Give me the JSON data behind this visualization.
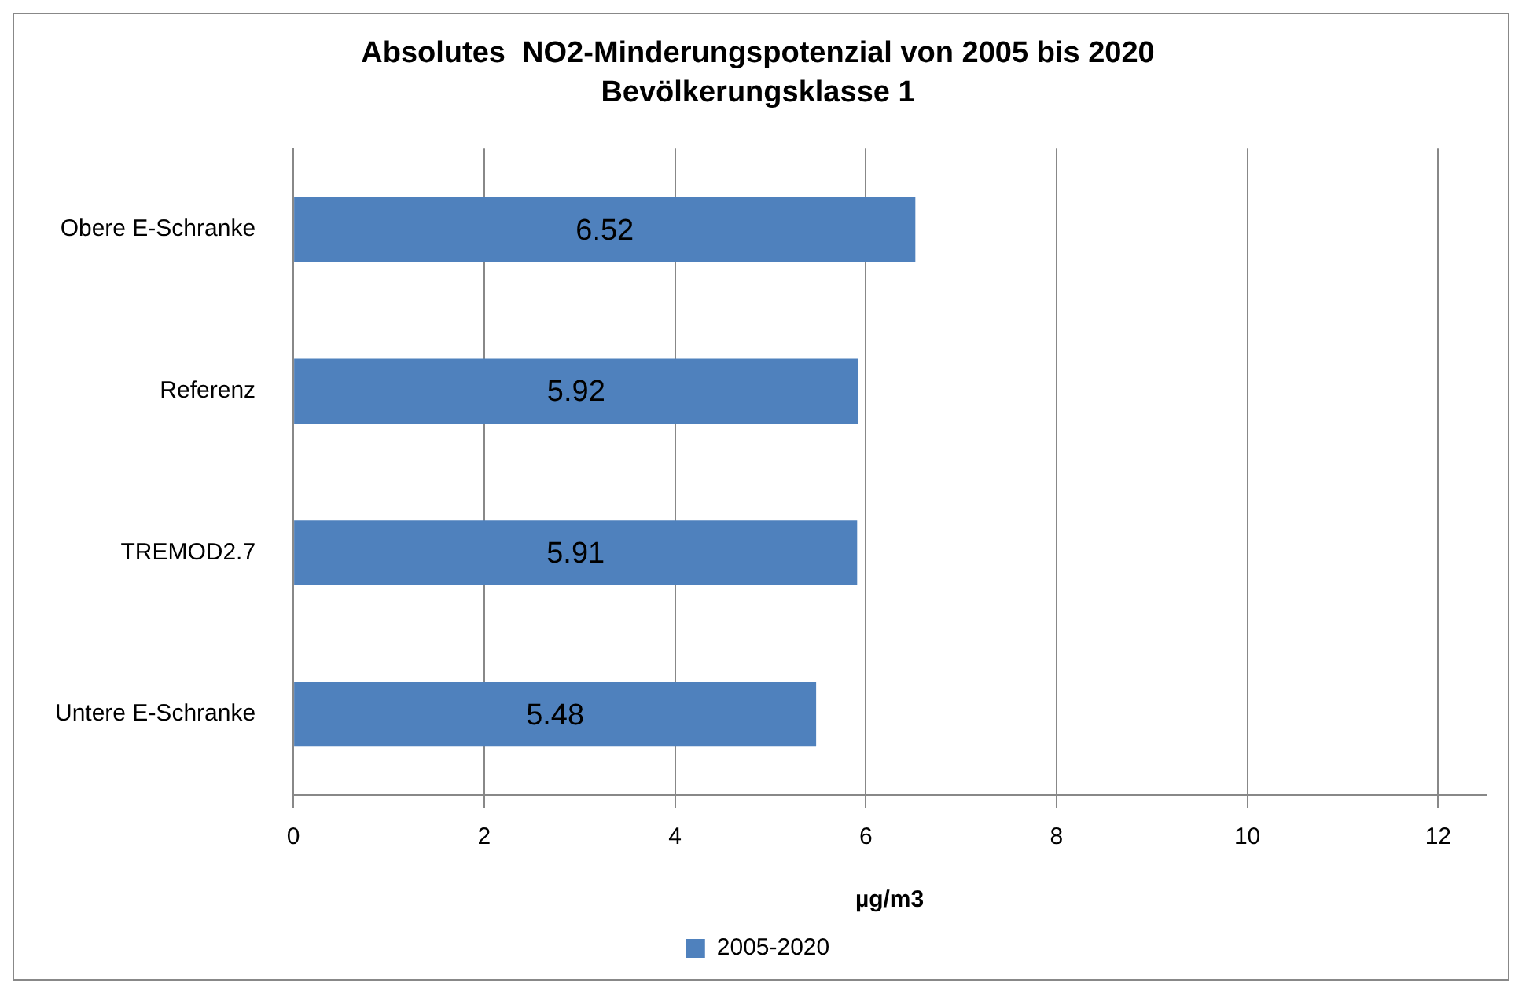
{
  "chart_data": {
    "type": "bar",
    "orientation": "horizontal",
    "title": "Absolutes  NO2-Minderungspotenzial von 2005 bis 2020",
    "subtitle": "Bevölkerungsklasse 1",
    "xlabel": "µg/m3",
    "categories": [
      "Obere E-Schranke",
      "Referenz",
      "TREMOD2.7",
      "Untere E-Schranke"
    ],
    "series": [
      {
        "name": "2005-2020",
        "color": "#4f81bd",
        "values": [
          6.52,
          5.92,
          5.91,
          5.48
        ]
      }
    ],
    "xlim": [
      0,
      12.5
    ],
    "xticks": [
      0,
      2,
      4,
      6,
      8,
      10,
      12
    ],
    "grid": "x",
    "legend": "bottom",
    "data_labels": true
  }
}
